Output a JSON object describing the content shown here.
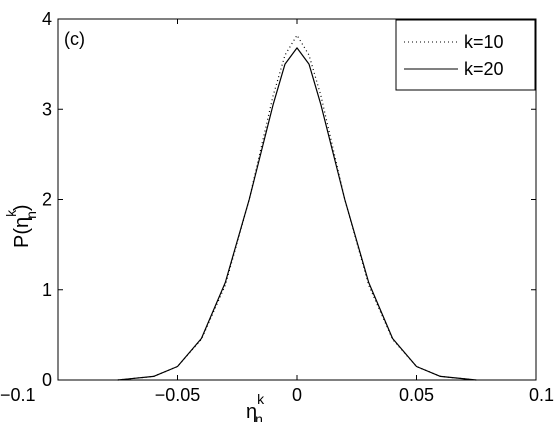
{
  "chart_data": {
    "type": "line",
    "panel_label": "(c)",
    "xlabel": {
      "base": "η",
      "sup": "k",
      "sub": "n"
    },
    "ylabel": {
      "prefix": "P(η",
      "sup": "k",
      "sub": "n",
      "suffix": ")"
    },
    "xlim": [
      -0.1,
      0.1
    ],
    "ylim": [
      0,
      4
    ],
    "xticks": [
      -0.1,
      -0.05,
      0,
      0.05,
      0.1
    ],
    "xtick_labels": [
      "−0.1",
      "−0.05",
      "0",
      "0.05",
      "0.1"
    ],
    "yticks": [
      0,
      1,
      2,
      3,
      4
    ],
    "ytick_labels": [
      "0",
      "1",
      "2",
      "3",
      "4"
    ],
    "grid": false,
    "legend_position": "top-right",
    "series": [
      {
        "name": "k=10",
        "style": "dotted",
        "color": "#000000",
        "x": [
          -0.075,
          -0.06,
          -0.05,
          -0.04,
          -0.03,
          -0.02,
          -0.01,
          -0.005,
          0,
          0.005,
          0.01,
          0.02,
          0.03,
          0.04,
          0.05,
          0.06,
          0.075
        ],
        "y": [
          0.0,
          0.04,
          0.15,
          0.45,
          1.05,
          2.0,
          3.15,
          3.6,
          3.82,
          3.6,
          3.15,
          2.0,
          1.05,
          0.45,
          0.15,
          0.04,
          0.0
        ]
      },
      {
        "name": "k=20",
        "style": "solid",
        "color": "#000000",
        "x": [
          -0.075,
          -0.06,
          -0.05,
          -0.04,
          -0.03,
          -0.02,
          -0.01,
          -0.005,
          0,
          0.005,
          0.01,
          0.02,
          0.03,
          0.04,
          0.05,
          0.06,
          0.075
        ],
        "y": [
          0.0,
          0.04,
          0.15,
          0.46,
          1.08,
          2.0,
          3.05,
          3.5,
          3.68,
          3.5,
          3.05,
          2.0,
          1.08,
          0.46,
          0.15,
          0.04,
          0.0
        ]
      }
    ]
  }
}
